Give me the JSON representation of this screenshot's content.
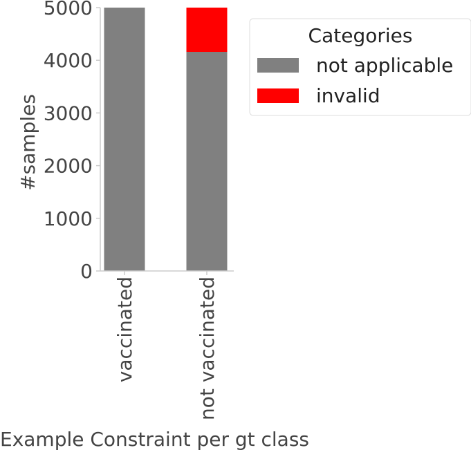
{
  "chart_data": {
    "type": "bar",
    "stacked": true,
    "categories": [
      "vaccinated",
      "not vaccinated"
    ],
    "series": [
      {
        "name": "not applicable",
        "color": "#808080",
        "values": [
          5000,
          4160
        ]
      },
      {
        "name": "invalid",
        "color": "#ff0000",
        "values": [
          0,
          840
        ]
      }
    ],
    "xlabel": "Example Constraint per gt class",
    "ylabel": "#samples",
    "ylim": [
      0,
      5000
    ],
    "yticks": [
      "0",
      "1000",
      "2000",
      "3000",
      "4000",
      "5000"
    ],
    "legend": {
      "title": "Categories",
      "placement": "upper-right-outside"
    },
    "grid": false
  }
}
